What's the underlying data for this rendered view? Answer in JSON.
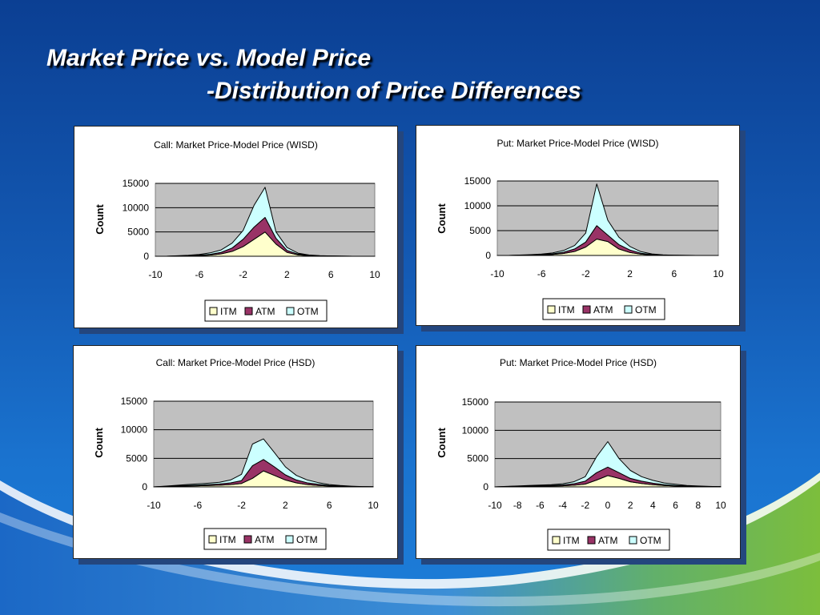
{
  "slide": {
    "title_line1": "Market Price vs. Model Price",
    "title_line2": "-Distribution of Price Differences"
  },
  "colors": {
    "itm": "#ffffcc",
    "atm": "#993366",
    "otm": "#ccffff",
    "plot_bg": "#c0c0c0"
  },
  "chart_data": [
    {
      "type": "area",
      "stacked": true,
      "title": "Call: Market Price-Model Price  (WISD)",
      "xlabel": "",
      "ylabel": "Count",
      "ylim": [
        0,
        15000
      ],
      "yticks": [
        "0",
        "5000",
        "10000",
        "15000"
      ],
      "xlim": [
        -10,
        10
      ],
      "xticks": [
        "-10",
        "-6",
        "-2",
        "2",
        "6",
        "10"
      ],
      "legend": "bottom",
      "grid": true,
      "x": [
        -10,
        -9,
        -8,
        -7,
        -6,
        -5,
        -4,
        -3,
        -2,
        -1,
        0,
        1,
        2,
        3,
        4,
        5,
        6,
        7,
        8,
        9,
        10
      ],
      "series": [
        {
          "name": "ITM",
          "values": [
            0,
            0,
            50,
            80,
            150,
            250,
            500,
            1000,
            2000,
            3500,
            5000,
            2500,
            800,
            300,
            120,
            60,
            30,
            10,
            0,
            0,
            0
          ]
        },
        {
          "name": "ATM",
          "values": [
            0,
            0,
            20,
            40,
            80,
            150,
            300,
            700,
            1500,
            2500,
            3000,
            1200,
            400,
            150,
            60,
            30,
            15,
            5,
            0,
            0,
            0
          ]
        },
        {
          "name": "OTM",
          "values": [
            0,
            0,
            30,
            80,
            150,
            300,
            500,
            1000,
            1800,
            4500,
            6200,
            1300,
            600,
            200,
            80,
            40,
            20,
            5,
            0,
            0,
            0
          ]
        }
      ]
    },
    {
      "type": "area",
      "stacked": true,
      "title": "Put: Market Price-Model Price  (WISD)",
      "xlabel": "",
      "ylabel": "Count",
      "ylim": [
        0,
        15000
      ],
      "yticks": [
        "0",
        "5000",
        "10000",
        "15000"
      ],
      "xlim": [
        -10,
        10
      ],
      "xticks": [
        "-10",
        "-6",
        "-2",
        "2",
        "6",
        "10"
      ],
      "legend": "bottom",
      "grid": true,
      "x": [
        -10,
        -9,
        -8,
        -7,
        -6,
        -5,
        -4,
        -3,
        -2,
        -1,
        0,
        1,
        2,
        3,
        4,
        5,
        6,
        7,
        8,
        9,
        10
      ],
      "series": [
        {
          "name": "ITM",
          "values": [
            0,
            0,
            30,
            60,
            100,
            200,
            400,
            800,
            1700,
            3300,
            2800,
            1300,
            600,
            250,
            100,
            40,
            20,
            5,
            0,
            0,
            0
          ]
        },
        {
          "name": "ATM",
          "values": [
            0,
            0,
            20,
            40,
            70,
            120,
            250,
            500,
            1000,
            2700,
            1300,
            900,
            500,
            200,
            80,
            30,
            15,
            5,
            0,
            0,
            0
          ]
        },
        {
          "name": "OTM",
          "values": [
            0,
            0,
            30,
            60,
            100,
            180,
            350,
            700,
            1800,
            8400,
            3000,
            1500,
            700,
            300,
            120,
            50,
            20,
            5,
            0,
            0,
            0
          ]
        }
      ]
    },
    {
      "type": "area",
      "stacked": true,
      "title": "Call: Market Price-Model Price  (HSD)",
      "xlabel": "",
      "ylabel": "Count",
      "ylim": [
        0,
        15000
      ],
      "yticks": [
        "0",
        "5000",
        "10000",
        "15000"
      ],
      "xlim": [
        -10,
        10
      ],
      "xticks": [
        "-10",
        "-6",
        "-2",
        "2",
        "6",
        "10"
      ],
      "legend": "bottom",
      "grid": true,
      "x": [
        -10,
        -9,
        -8,
        -7,
        -6,
        -5,
        -4,
        -3,
        -2,
        -1,
        0,
        1,
        2,
        3,
        4,
        5,
        6,
        7,
        8,
        9,
        10
      ],
      "series": [
        {
          "name": "ITM",
          "values": [
            0,
            50,
            100,
            150,
            200,
            250,
            300,
            400,
            600,
            1500,
            2800,
            2000,
            1200,
            700,
            400,
            250,
            150,
            80,
            40,
            20,
            10
          ]
        },
        {
          "name": "ATM",
          "values": [
            0,
            30,
            60,
            100,
            120,
            150,
            200,
            300,
            500,
            2200,
            2000,
            1500,
            900,
            500,
            300,
            200,
            100,
            60,
            30,
            15,
            5
          ]
        },
        {
          "name": "OTM",
          "values": [
            0,
            50,
            100,
            150,
            200,
            250,
            300,
            500,
            1100,
            3800,
            3600,
            2500,
            1400,
            800,
            500,
            300,
            150,
            100,
            50,
            25,
            10
          ]
        }
      ]
    },
    {
      "type": "area",
      "stacked": true,
      "title": "Put: Market Price-Model Price  (HSD)",
      "xlabel": "",
      "ylabel": "Count",
      "ylim": [
        0,
        15000
      ],
      "yticks": [
        "0",
        "5000",
        "10000",
        "15000"
      ],
      "xlim": [
        -10,
        10
      ],
      "xticks": [
        "-10",
        "-8",
        "-6",
        "-4",
        "-2",
        "0",
        "2",
        "4",
        "6",
        "8",
        "10"
      ],
      "legend": "bottom",
      "grid": true,
      "x": [
        -10,
        -9,
        -8,
        -7,
        -6,
        -5,
        -4,
        -3,
        -2,
        -1,
        0,
        1,
        2,
        3,
        4,
        5,
        6,
        7,
        8,
        9,
        10
      ],
      "series": [
        {
          "name": "ITM",
          "values": [
            0,
            30,
            60,
            100,
            120,
            150,
            200,
            300,
            500,
            1200,
            2000,
            1500,
            900,
            600,
            400,
            250,
            150,
            100,
            60,
            30,
            20
          ]
        },
        {
          "name": "ATM",
          "values": [
            0,
            20,
            40,
            60,
            80,
            100,
            150,
            250,
            500,
            1300,
            1500,
            1000,
            600,
            400,
            250,
            150,
            100,
            60,
            30,
            20,
            10
          ]
        },
        {
          "name": "OTM",
          "values": [
            0,
            30,
            60,
            100,
            120,
            150,
            200,
            350,
            800,
            2800,
            4500,
            2500,
            1400,
            800,
            500,
            300,
            200,
            100,
            60,
            30,
            20
          ]
        }
      ]
    }
  ]
}
